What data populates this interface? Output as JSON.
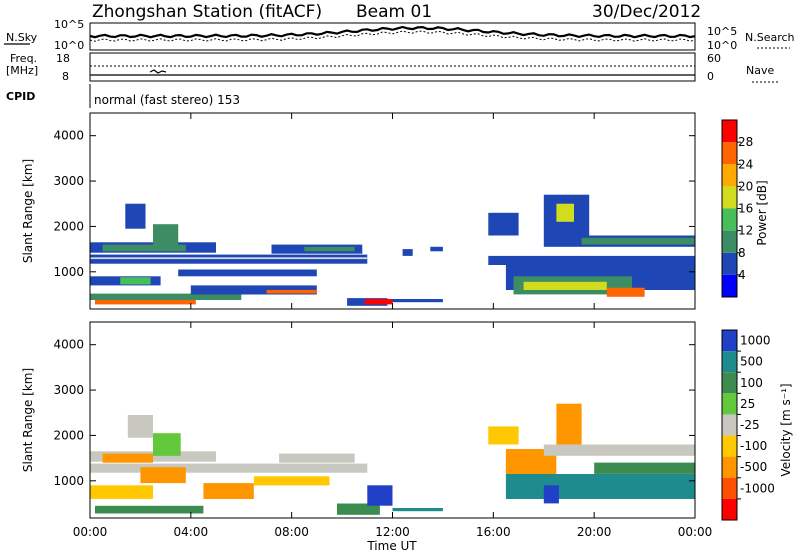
{
  "header": {
    "station": "Zhongshan Station (fitACF)",
    "beam": "Beam 01",
    "date": "30/Dec/2012"
  },
  "top_labels": {
    "nsky": "N.Sky",
    "nsearch": "N.Search",
    "freq": "Freq.",
    "freq_unit": "[MHz]",
    "nave": "Nave",
    "cpid": "CPID",
    "cpid_text": "normal (fast stereo) 153",
    "noise_tick_hi": "10^5",
    "noise_tick_lo": "10^0",
    "freq_tick_hi": "18",
    "freq_tick_lo": "8",
    "nave_tick_hi": "60",
    "nave_tick_lo": "0"
  },
  "chart_data": [
    {
      "type": "heatmap",
      "panel": "power",
      "ylabel": "Slant Range [km]",
      "xlabel": "",
      "ylim": [
        180,
        4500
      ],
      "yticks": [
        "1000",
        "2000",
        "3000",
        "4000"
      ],
      "xlim": [
        0,
        24
      ],
      "xticks": [
        "00:00",
        "04:00",
        "08:00",
        "12:00",
        "16:00",
        "20:00",
        "00:00"
      ],
      "colorbar": {
        "label": "Power [dB]",
        "ticks": [
          "4",
          "8",
          "12",
          "16",
          "20",
          "24",
          "28"
        ],
        "colors": [
          "#0000ff",
          "#1e46b4",
          "#3c8c64",
          "#46be5a",
          "#d2dc1e",
          "#ffaa00",
          "#ff6400",
          "#ff0000"
        ],
        "values": [
          0,
          4,
          8,
          12,
          16,
          20,
          24,
          28
        ]
      },
      "patches": [
        {
          "t0": 0.0,
          "t1": 11.0,
          "r0": 1180,
          "r1": 1380,
          "color": "#1e46b4"
        },
        {
          "t0": 0.0,
          "t1": 11.0,
          "r0": 1280,
          "r1": 1320,
          "color": "#d8d8d8"
        },
        {
          "t0": 0.0,
          "t1": 5.0,
          "r0": 1420,
          "r1": 1650,
          "color": "#1e46b4"
        },
        {
          "t0": 0.5,
          "t1": 3.8,
          "r0": 1450,
          "r1": 1600,
          "color": "#3c8c64"
        },
        {
          "t0": 1.4,
          "t1": 2.2,
          "r0": 1950,
          "r1": 2500,
          "color": "#1e46b4"
        },
        {
          "t0": 2.5,
          "t1": 3.5,
          "r0": 1550,
          "r1": 2050,
          "color": "#3c8c64"
        },
        {
          "t0": 0.0,
          "t1": 2.8,
          "r0": 700,
          "r1": 900,
          "color": "#1e46b4"
        },
        {
          "t0": 1.2,
          "t1": 2.4,
          "r0": 720,
          "r1": 880,
          "color": "#46be5a"
        },
        {
          "t0": 0.2,
          "t1": 4.2,
          "r0": 280,
          "r1": 380,
          "color": "#ff6400"
        },
        {
          "t0": 0.0,
          "t1": 6.0,
          "r0": 380,
          "r1": 520,
          "color": "#3c8c64"
        },
        {
          "t0": 4.0,
          "t1": 9.0,
          "r0": 500,
          "r1": 700,
          "color": "#1e46b4"
        },
        {
          "t0": 7.0,
          "t1": 9.0,
          "r0": 520,
          "r1": 600,
          "color": "#ff6400"
        },
        {
          "t0": 3.5,
          "t1": 9.0,
          "r0": 900,
          "r1": 1050,
          "color": "#1e46b4"
        },
        {
          "t0": 7.2,
          "t1": 10.8,
          "r0": 1400,
          "r1": 1600,
          "color": "#1e46b4"
        },
        {
          "t0": 8.5,
          "t1": 10.5,
          "r0": 1450,
          "r1": 1550,
          "color": "#3c8c64"
        },
        {
          "t0": 10.2,
          "t1": 11.8,
          "r0": 250,
          "r1": 420,
          "color": "#1e46b4"
        },
        {
          "t0": 10.9,
          "t1": 12.0,
          "r0": 280,
          "r1": 400,
          "color": "#ff0000"
        },
        {
          "t0": 12.0,
          "t1": 14.0,
          "r0": 330,
          "r1": 400,
          "color": "#1e46b4"
        },
        {
          "t0": 12.4,
          "t1": 12.8,
          "r0": 1350,
          "r1": 1500,
          "color": "#1e46b4"
        },
        {
          "t0": 13.5,
          "t1": 14.0,
          "r0": 1450,
          "r1": 1550,
          "color": "#1e46b4"
        },
        {
          "t0": 15.8,
          "t1": 24.0,
          "r0": 1150,
          "r1": 1350,
          "color": "#1e46b4"
        },
        {
          "t0": 16.5,
          "t1": 24.0,
          "r0": 600,
          "r1": 1150,
          "color": "#1e46b4"
        },
        {
          "t0": 16.8,
          "t1": 21.5,
          "r0": 500,
          "r1": 900,
          "color": "#3c8c64"
        },
        {
          "t0": 17.2,
          "t1": 20.5,
          "r0": 600,
          "r1": 780,
          "color": "#d2dc1e"
        },
        {
          "t0": 20.5,
          "t1": 22.0,
          "r0": 450,
          "r1": 650,
          "color": "#ff6400"
        },
        {
          "t0": 18.0,
          "t1": 24.0,
          "r0": 1550,
          "r1": 1800,
          "color": "#1e46b4"
        },
        {
          "t0": 19.5,
          "t1": 24.0,
          "r0": 1600,
          "r1": 1750,
          "color": "#3c8c64"
        },
        {
          "t0": 18.0,
          "t1": 19.8,
          "r0": 1800,
          "r1": 2700,
          "color": "#1e46b4"
        },
        {
          "t0": 18.5,
          "t1": 19.2,
          "r0": 2100,
          "r1": 2500,
          "color": "#d2dc1e"
        },
        {
          "t0": 15.8,
          "t1": 17.0,
          "r0": 1800,
          "r1": 2300,
          "color": "#1e46b4"
        }
      ]
    },
    {
      "type": "heatmap",
      "panel": "velocity",
      "ylabel": "Slant Range [km]",
      "xlabel": "Time UT",
      "ylim": [
        180,
        4500
      ],
      "yticks": [
        "1000",
        "2000",
        "3000",
        "4000"
      ],
      "xlim": [
        0,
        24
      ],
      "xticks": [
        "00:00",
        "04:00",
        "08:00",
        "12:00",
        "16:00",
        "20:00",
        "00:00"
      ],
      "colorbar": {
        "label": "Velocity [m s⁻¹]",
        "ticks": [
          "1000",
          "500",
          "100",
          "25",
          "-25",
          "-100",
          "-500",
          "-1000"
        ],
        "colors": [
          "#2040c8",
          "#1e8c8c",
          "#3c8c50",
          "#64c83c",
          "#c8c8c0",
          "#ffc800",
          "#ff9600",
          "#ff5000",
          "#ff0000"
        ]
      },
      "patches": [
        {
          "t0": 0.0,
          "t1": 11.0,
          "r0": 1180,
          "r1": 1380,
          "color": "#c8c8c0"
        },
        {
          "t0": 0.0,
          "t1": 5.0,
          "r0": 1420,
          "r1": 1650,
          "color": "#c8c8c0"
        },
        {
          "t0": 0.5,
          "t1": 2.5,
          "r0": 1400,
          "r1": 1600,
          "color": "#ff9600"
        },
        {
          "t0": 1.5,
          "t1": 2.5,
          "r0": 1950,
          "r1": 2450,
          "color": "#c8c8c0"
        },
        {
          "t0": 2.5,
          "t1": 3.6,
          "r0": 1550,
          "r1": 2050,
          "color": "#64c83c"
        },
        {
          "t0": 2.0,
          "t1": 3.8,
          "r0": 950,
          "r1": 1300,
          "color": "#ff9600"
        },
        {
          "t0": 0.2,
          "t1": 4.5,
          "r0": 280,
          "r1": 450,
          "color": "#3c8c50"
        },
        {
          "t0": 0.0,
          "t1": 2.5,
          "r0": 600,
          "r1": 900,
          "color": "#ffc800"
        },
        {
          "t0": 4.5,
          "t1": 6.5,
          "r0": 600,
          "r1": 950,
          "color": "#ff9600"
        },
        {
          "t0": 6.5,
          "t1": 9.5,
          "r0": 900,
          "r1": 1100,
          "color": "#ffc800"
        },
        {
          "t0": 7.5,
          "t1": 10.5,
          "r0": 1400,
          "r1": 1600,
          "color": "#c8c8c0"
        },
        {
          "t0": 9.8,
          "t1": 11.5,
          "r0": 250,
          "r1": 500,
          "color": "#3c8c50"
        },
        {
          "t0": 11.0,
          "t1": 12.0,
          "r0": 450,
          "r1": 900,
          "color": "#2040c8"
        },
        {
          "t0": 12.0,
          "t1": 14.0,
          "r0": 330,
          "r1": 400,
          "color": "#1e8c8c"
        },
        {
          "t0": 16.5,
          "t1": 24.0,
          "r0": 600,
          "r1": 1150,
          "color": "#1e8c8c"
        },
        {
          "t0": 16.5,
          "t1": 18.5,
          "r0": 1150,
          "r1": 1700,
          "color": "#ff9600"
        },
        {
          "t0": 18.0,
          "t1": 18.6,
          "r0": 500,
          "r1": 900,
          "color": "#2040c8"
        },
        {
          "t0": 18.0,
          "t1": 24.0,
          "r0": 1550,
          "r1": 1800,
          "color": "#c8c8c0"
        },
        {
          "t0": 18.5,
          "t1": 19.5,
          "r0": 1800,
          "r1": 2700,
          "color": "#ff9600"
        },
        {
          "t0": 20.0,
          "t1": 24.0,
          "r0": 1150,
          "r1": 1400,
          "color": "#3c8c50"
        },
        {
          "t0": 15.8,
          "t1": 17.0,
          "r0": 1800,
          "r1": 2200,
          "color": "#ffc800"
        }
      ]
    }
  ]
}
